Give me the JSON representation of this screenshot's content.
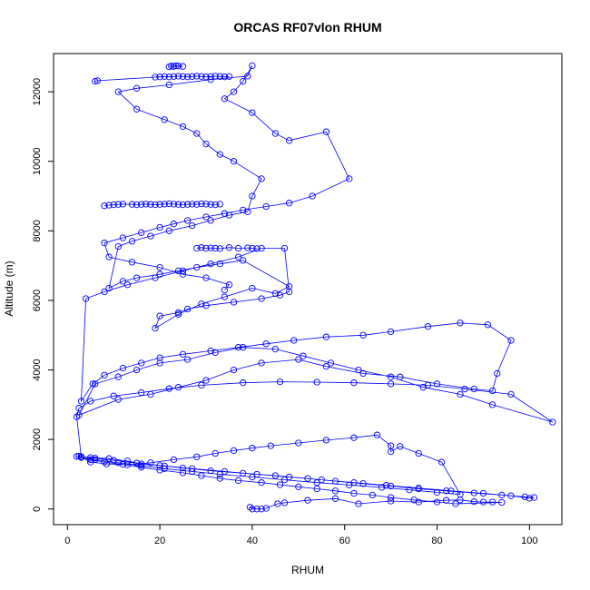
{
  "chart_data": {
    "type": "line",
    "title": "ORCAS RF07vlon RHUM",
    "xlabel": "RHUM",
    "ylabel": "Altitude (m)",
    "xlim": [
      -3,
      107
    ],
    "ylim": [
      -450,
      13100
    ],
    "xticks": [
      0,
      20,
      40,
      60,
      80,
      100
    ],
    "yticks": [
      0,
      2000,
      4000,
      6000,
      8000,
      10000,
      12000
    ],
    "grid": false,
    "markers": "open-circle",
    "series": [
      {
        "color": "#0000ff",
        "x": [
          40,
          39.5,
          41,
          42,
          43,
          45.5,
          47,
          52,
          58,
          63,
          70,
          76,
          82,
          85,
          88,
          90,
          92,
          94,
          84,
          80,
          75,
          70,
          66,
          62,
          58,
          54,
          50,
          46,
          42,
          37,
          33,
          29,
          25,
          20,
          16,
          12,
          8,
          5,
          3,
          2,
          5,
          9,
          13,
          16,
          20,
          25,
          31,
          38,
          45,
          52,
          58,
          64,
          70,
          76,
          82,
          88,
          94,
          99,
          101,
          100,
          96,
          90,
          83,
          76,
          69,
          62,
          55,
          48,
          41,
          34,
          27,
          21,
          15,
          10,
          6,
          3,
          2.5,
          6,
          11,
          16,
          21,
          27,
          33,
          40,
          47,
          54,
          61,
          68,
          74,
          80,
          85,
          81,
          76,
          72,
          70,
          70,
          67,
          62,
          56,
          50,
          44,
          40,
          36,
          32,
          28,
          23,
          18,
          13,
          8.5,
          5,
          3,
          2,
          2.5,
          5,
          10,
          16,
          22,
          29,
          38,
          46,
          54,
          62,
          70,
          78,
          86,
          96,
          105,
          92,
          85,
          77,
          70,
          63,
          57,
          51,
          45,
          38,
          32,
          26,
          20,
          15,
          11,
          6,
          2.5,
          11,
          18,
          24,
          30,
          36,
          42,
          50,
          56,
          64,
          72,
          80,
          88,
          92,
          93,
          96,
          91,
          85,
          78,
          70,
          64,
          56,
          49,
          43,
          37,
          31,
          25,
          20,
          16,
          12,
          8,
          5.5,
          3,
          4,
          8,
          13,
          19,
          25,
          31,
          37,
          42,
          47,
          48,
          46,
          42,
          36,
          30,
          26,
          24,
          20,
          19,
          24,
          29,
          34,
          40,
          45,
          48,
          38,
          33,
          28,
          24,
          20,
          15,
          12,
          9,
          11,
          14,
          18,
          22,
          27,
          31,
          35,
          39,
          40,
          42,
          36,
          33,
          30,
          28,
          25,
          21,
          15,
          11,
          15,
          22,
          31,
          39,
          40,
          38,
          36,
          34,
          40,
          45,
          48,
          56,
          61,
          53,
          48,
          43,
          38,
          34,
          30,
          26,
          23,
          20,
          16,
          12,
          8,
          9,
          14,
          20,
          25,
          30,
          35,
          34
        ],
        "y": [
          0,
          50,
          0,
          0,
          20,
          150,
          180,
          250,
          300,
          150,
          230,
          200,
          250,
          260,
          210,
          200,
          200,
          190,
          150,
          200,
          260,
          330,
          400,
          450,
          520,
          580,
          640,
          700,
          760,
          820,
          880,
          960,
          1040,
          1120,
          1200,
          1280,
          1350,
          1420,
          1480,
          1510,
          1480,
          1450,
          1380,
          1300,
          1250,
          1180,
          1100,
          1030,
          960,
          880,
          800,
          730,
          660,
          580,
          520,
          460,
          400,
          350,
          330,
          310,
          380,
          450,
          520,
          600,
          680,
          760,
          840,
          920,
          1000,
          1080,
          1160,
          1240,
          1320,
          1400,
          1460,
          1500,
          1520,
          1420,
          1330,
          1250,
          1160,
          1080,
          1000,
          920,
          840,
          760,
          690,
          620,
          550,
          480,
          420,
          1350,
          1600,
          1800,
          1650,
          1820,
          2130,
          2050,
          1980,
          1900,
          1820,
          1750,
          1680,
          1600,
          1500,
          1420,
          1330,
          1270,
          1300,
          1350,
          1500,
          2650,
          2900,
          3100,
          3250,
          3350,
          3460,
          3560,
          3630,
          3660,
          3650,
          3630,
          3600,
          3560,
          3450,
          3300,
          2500,
          3000,
          3300,
          3500,
          3800,
          4000,
          4200,
          4400,
          4600,
          4650,
          4500,
          4300,
          4200,
          4000,
          3800,
          3600,
          2700,
          3150,
          3300,
          3500,
          3700,
          4000,
          4200,
          4300,
          4100,
          3900,
          3800,
          3600,
          3450,
          3400,
          3900,
          4850,
          5300,
          5350,
          5250,
          5100,
          5000,
          4950,
          4850,
          4750,
          4650,
          4550,
          4450,
          4350,
          4200,
          4050,
          3850,
          3600,
          3100,
          6050,
          6250,
          6450,
          6650,
          6850,
          7050,
          7250,
          7500,
          7500,
          6250,
          6150,
          6050,
          5950,
          5850,
          5750,
          5650,
          5550,
          5200,
          5600,
          5900,
          6100,
          6350,
          6200,
          6400,
          7150,
          7050,
          6950,
          6850,
          6750,
          6650,
          6550,
          6350,
          7550,
          7700,
          7850,
          8000,
          8150,
          8300,
          8450,
          8550,
          9000,
          9500,
          10000,
          10200,
          10500,
          10800,
          11000,
          11200,
          11500,
          12000,
          12100,
          12200,
          12350,
          12450,
          12750,
          12300,
          12000,
          11800,
          11400,
          10800,
          10600,
          10850,
          9500,
          9000,
          8800,
          8700,
          8600,
          8500,
          8400,
          8300,
          8200,
          8100,
          7950,
          7800,
          7650,
          7250,
          7100,
          6950,
          6750,
          6650,
          6450,
          6300
        ]
      },
      {
        "color": "#0000ff",
        "x": [
          8,
          9,
          10,
          11,
          12,
          14,
          15,
          16,
          17,
          18,
          19,
          20,
          21,
          22,
          23,
          24,
          25,
          26,
          27,
          28,
          29,
          30,
          31,
          32,
          33
        ],
        "y": [
          8720,
          8740,
          8750,
          8760,
          8770,
          8760,
          8750,
          8760,
          8770,
          8760,
          8750,
          8760,
          8770,
          8780,
          8770,
          8760,
          8750,
          8760,
          8770,
          8760,
          8780,
          8770,
          8760,
          8750,
          8770
        ]
      },
      {
        "color": "#0000ff",
        "x": [
          6,
          6.5,
          19,
          20,
          21,
          22,
          23,
          24,
          25,
          26,
          27,
          28,
          29,
          30,
          31,
          32,
          33,
          34,
          35
        ],
        "y": [
          12300,
          12320,
          12420,
          12430,
          12440,
          12430,
          12440,
          12450,
          12440,
          12430,
          12440,
          12450,
          12440,
          12430,
          12440,
          12450,
          12440,
          12430,
          12440
        ]
      },
      {
        "color": "#0000ff",
        "x": [
          22,
          22.5,
          23,
          23.5,
          24,
          25
        ],
        "y": [
          12720,
          12740,
          12730,
          12750,
          12740,
          12730
        ]
      },
      {
        "color": "#0000ff",
        "x": [
          28,
          29,
          30,
          31,
          32,
          33,
          35,
          37,
          39,
          40,
          41
        ],
        "y": [
          7500,
          7520,
          7500,
          7510,
          7500,
          7490,
          7520,
          7500,
          7510,
          7500,
          7490
        ]
      }
    ]
  }
}
